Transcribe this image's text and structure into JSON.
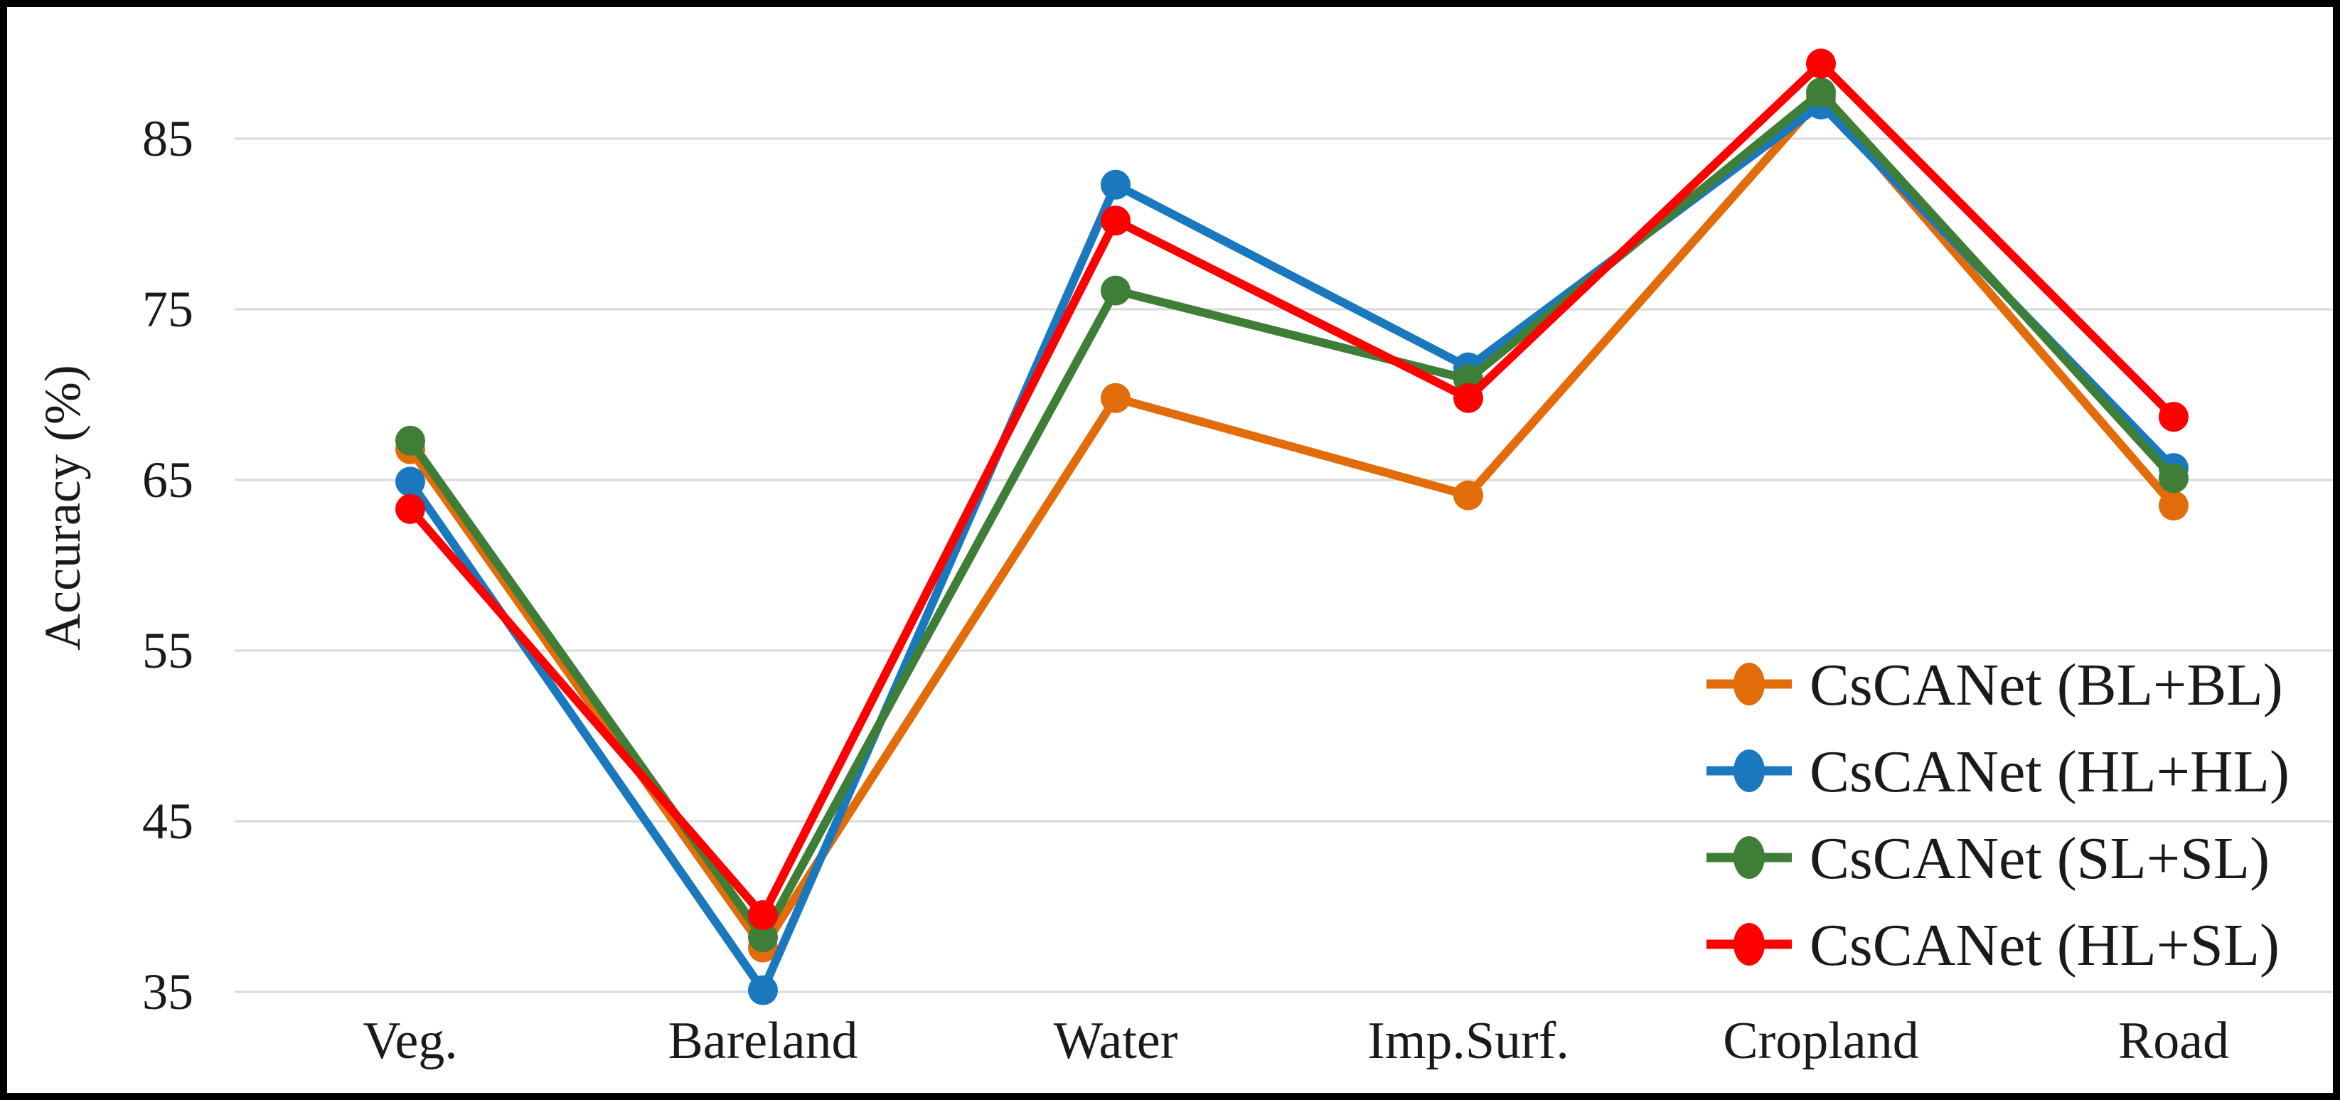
{
  "figure": {
    "background": "#FFFFFF",
    "border_color": "#000000",
    "gridline_color": "#D9D9D9"
  },
  "chart_data": {
    "type": "line",
    "title": "",
    "xlabel": "",
    "ylabel": "Accuracy (%)",
    "categories": [
      "Veg.",
      "Bareland",
      "Water",
      "Imp.Surf.",
      "Cropland",
      "Road"
    ],
    "y_ticks": [
      35,
      45,
      55,
      65,
      75,
      85
    ],
    "ylim": [
      27.5,
      92.7
    ],
    "grid": "horizontal",
    "legend_position": "inside-bottom-right",
    "marker": "circle",
    "series": [
      {
        "name": "CsCANet (BL+BL)",
        "color": "#E26B0A",
        "values": [
          66.8,
          37.6,
          69.8,
          64.1,
          87.4,
          63.5
        ]
      },
      {
        "name": "CsCANet (HL+HL)",
        "color": "#1A78BE",
        "values": [
          64.9,
          35.1,
          82.3,
          71.6,
          87.0,
          65.7
        ]
      },
      {
        "name": "CsCANet (SL+SL)",
        "color": "#3F7E37",
        "values": [
          67.3,
          38.2,
          76.1,
          70.9,
          87.7,
          65.1
        ]
      },
      {
        "name": "CsCANet (HL+SL)",
        "color": "#FE0000",
        "values": [
          63.3,
          39.5,
          80.2,
          69.8,
          89.4,
          68.7
        ]
      }
    ]
  }
}
